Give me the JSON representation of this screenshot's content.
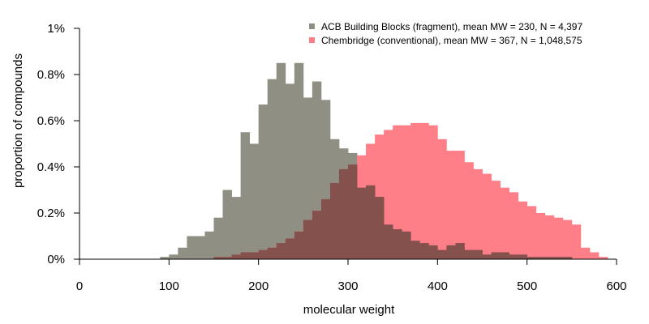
{
  "chart_data": {
    "type": "histogram",
    "xlabel": "molecular weight",
    "ylabel": "proportion of compounds",
    "xlim": [
      0,
      600
    ],
    "ylim": [
      0,
      1
    ],
    "x_ticks": [
      0,
      100,
      200,
      300,
      400,
      500,
      600
    ],
    "y_ticks": [
      0,
      0.2,
      0.4,
      0.6,
      0.8,
      1
    ],
    "y_tick_labels": [
      "0%",
      "0.2%",
      "0.4%",
      "0.6%",
      "0.8%",
      "1%"
    ],
    "bin_width": 10,
    "bin_start": 80,
    "grid": false,
    "legend_position": "top-right",
    "overlap_color": "#84514d",
    "series": [
      {
        "name": "ACB Building Blocks (fragment), mean MW = 230, N = 4,397",
        "color": "#8f8f84",
        "values": [
          0.0,
          0.01,
          0.02,
          0.05,
          0.1,
          0.1,
          0.12,
          0.18,
          0.3,
          0.27,
          0.55,
          0.5,
          0.67,
          0.78,
          0.85,
          0.76,
          0.85,
          0.7,
          0.77,
          0.69,
          0.52,
          0.48,
          0.46,
          0.31,
          0.32,
          0.27,
          0.15,
          0.13,
          0.12,
          0.08,
          0.07,
          0.06,
          0.04,
          0.06,
          0.07,
          0.04,
          0.04,
          0.02,
          0.03,
          0.03,
          0.02,
          0.02,
          0.01,
          0.01,
          0.01,
          0.01,
          0.01,
          0.0
        ]
      },
      {
        "name": "Chembridge (conventional), mean MW = 367, N = 1,048,575",
        "color": "#ff7f88",
        "values": [
          0.0,
          0.0,
          0.0,
          0.0,
          0.0,
          0.0,
          0.0,
          0.01,
          0.01,
          0.02,
          0.03,
          0.03,
          0.04,
          0.05,
          0.07,
          0.09,
          0.12,
          0.17,
          0.21,
          0.26,
          0.33,
          0.39,
          0.41,
          0.45,
          0.5,
          0.54,
          0.56,
          0.58,
          0.58,
          0.59,
          0.59,
          0.58,
          0.52,
          0.47,
          0.47,
          0.42,
          0.39,
          0.37,
          0.34,
          0.31,
          0.29,
          0.25,
          0.23,
          0.2,
          0.19,
          0.18,
          0.17,
          0.15,
          0.05,
          0.03,
          0.01,
          0.0
        ]
      }
    ]
  }
}
